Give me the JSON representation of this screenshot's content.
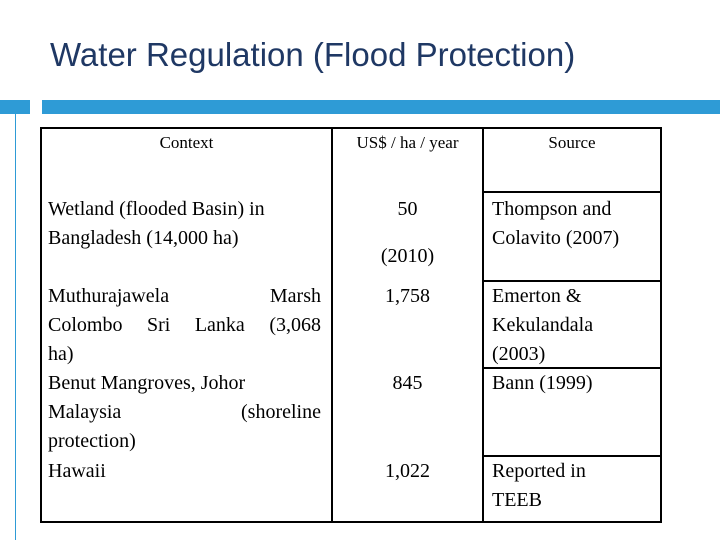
{
  "slide": {
    "title": "Water Regulation (Flood Protection)",
    "accent_color": "#2e9bd6",
    "title_color": "#1f3864"
  },
  "table": {
    "headers": [
      "Context",
      "US$ / ha / year",
      "Source"
    ],
    "rows": [
      {
        "context": "Wetland (flooded Basin) in Bangladesh (14,000 ha)",
        "value": "50",
        "value_note": "(2010)",
        "source": "Thompson and Colavito (2007)"
      },
      {
        "context_lines": [
          "Muthurajawela",
          "Marsh",
          "Colombo Sri Lanka (3,068",
          "ha)"
        ],
        "value": "1,758",
        "source": "Emerton & Kekulandala (2003)"
      },
      {
        "context_lines": [
          "Benut Mangroves, Johor",
          "Malaysia",
          "(shoreline",
          "protection)"
        ],
        "value": "845",
        "source": "Bann (1999)"
      },
      {
        "context": "Hawaii",
        "value": "1,022",
        "source": "Reported in TEEB"
      }
    ]
  }
}
